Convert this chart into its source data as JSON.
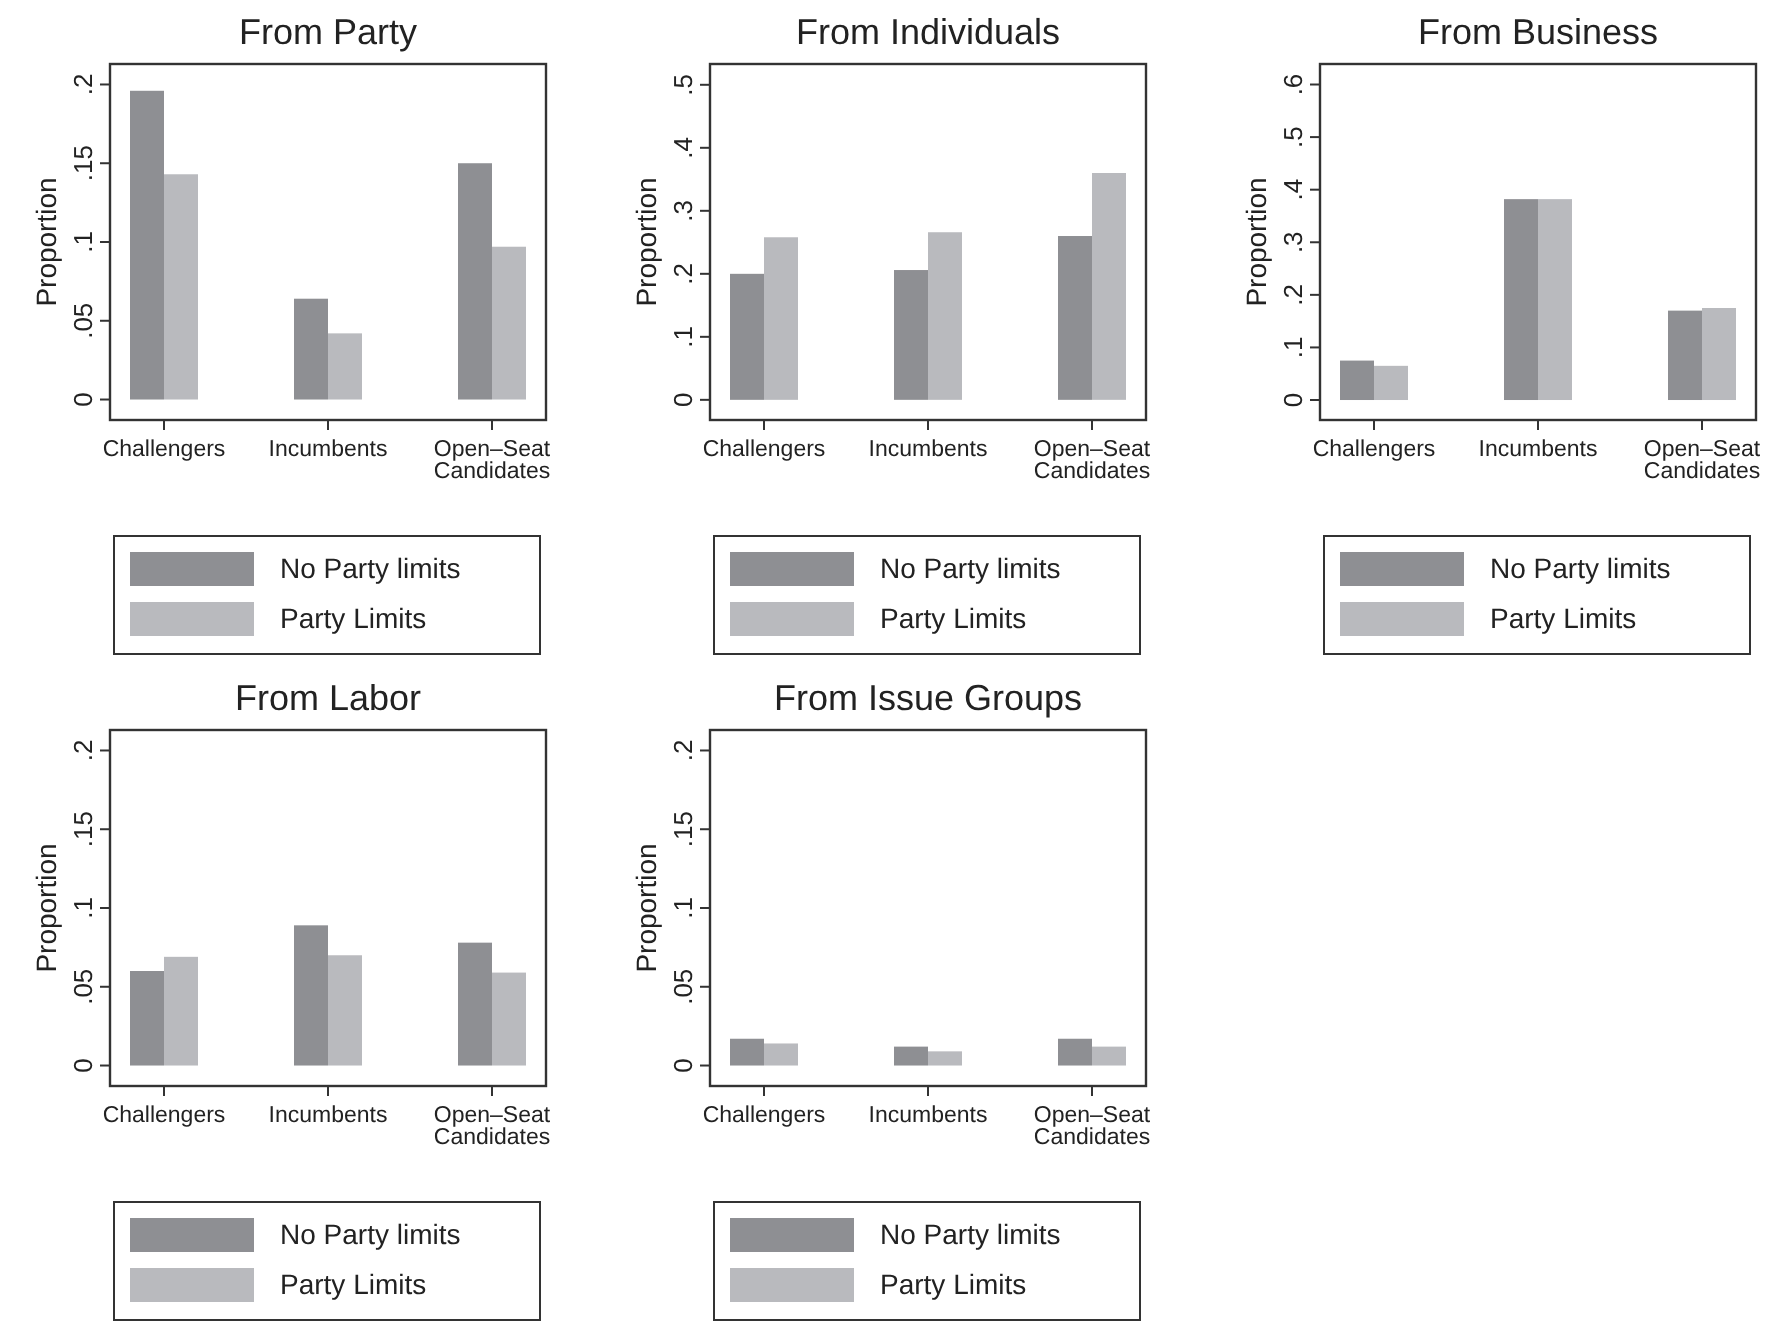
{
  "chart_data": [
    {
      "type": "bar",
      "title": "From Party",
      "ylabel": "Proportion",
      "categories": [
        "Challengers",
        "Incumbents",
        "Open–Seat Candidates"
      ],
      "series": [
        {
          "name": "No Party limits",
          "color": "#8e8f93",
          "values": [
            0.196,
            0.064,
            0.15
          ]
        },
        {
          "name": "Party Limits",
          "color": "#b9babe",
          "values": [
            0.143,
            0.042,
            0.097
          ]
        }
      ],
      "ylim": [
        -0.013,
        0.213
      ],
      "yticks": [
        {
          "value": 0,
          "label": "0"
        },
        {
          "value": 0.05,
          "label": ".05"
        },
        {
          "value": 0.1,
          "label": ".1"
        },
        {
          "value": 0.15,
          "label": ".15"
        },
        {
          "value": 0.2,
          "label": ".2"
        }
      ],
      "legend": "bottom"
    },
    {
      "type": "bar",
      "title": "From Individuals",
      "ylabel": "Proportion",
      "categories": [
        "Challengers",
        "Incumbents",
        "Open–Seat Candidates"
      ],
      "series": [
        {
          "name": "No Party limits",
          "color": "#8e8f93",
          "values": [
            0.2,
            0.206,
            0.26
          ]
        },
        {
          "name": "Party Limits",
          "color": "#b9babe",
          "values": [
            0.258,
            0.266,
            0.36
          ]
        }
      ],
      "ylim": [
        -0.032,
        0.533
      ],
      "yticks": [
        {
          "value": 0,
          "label": "0"
        },
        {
          "value": 0.1,
          "label": ".1"
        },
        {
          "value": 0.2,
          "label": ".2"
        },
        {
          "value": 0.3,
          "label": ".3"
        },
        {
          "value": 0.4,
          "label": ".4"
        },
        {
          "value": 0.5,
          "label": ".5"
        }
      ],
      "legend": "bottom"
    },
    {
      "type": "bar",
      "title": "From Business",
      "ylabel": "Proportion",
      "categories": [
        "Challengers",
        "Incumbents",
        "Open–Seat Candidates"
      ],
      "series": [
        {
          "name": "No Party limits",
          "color": "#8e8f93",
          "values": [
            0.075,
            0.382,
            0.17
          ]
        },
        {
          "name": "Party Limits",
          "color": "#b9babe",
          "values": [
            0.065,
            0.382,
            0.175
          ]
        }
      ],
      "ylim": [
        -0.038,
        0.639
      ],
      "yticks": [
        {
          "value": 0,
          "label": "0"
        },
        {
          "value": 0.1,
          "label": ".1"
        },
        {
          "value": 0.2,
          "label": ".2"
        },
        {
          "value": 0.3,
          "label": ".3"
        },
        {
          "value": 0.4,
          "label": ".4"
        },
        {
          "value": 0.5,
          "label": ".5"
        },
        {
          "value": 0.6,
          "label": ".6"
        }
      ],
      "legend": "bottom"
    },
    {
      "type": "bar",
      "title": "From Labor",
      "ylabel": "Proportion",
      "categories": [
        "Challengers",
        "Incumbents",
        "Open–Seat Candidates"
      ],
      "series": [
        {
          "name": "No Party limits",
          "color": "#8e8f93",
          "values": [
            0.06,
            0.089,
            0.078
          ]
        },
        {
          "name": "Party Limits",
          "color": "#b9babe",
          "values": [
            0.069,
            0.07,
            0.059
          ]
        }
      ],
      "ylim": [
        -0.013,
        0.213
      ],
      "yticks": [
        {
          "value": 0,
          "label": "0"
        },
        {
          "value": 0.05,
          "label": ".05"
        },
        {
          "value": 0.1,
          "label": ".1"
        },
        {
          "value": 0.15,
          "label": ".15"
        },
        {
          "value": 0.2,
          "label": ".2"
        }
      ],
      "legend": "bottom"
    },
    {
      "type": "bar",
      "title": "From Issue Groups",
      "ylabel": "Proportion",
      "categories": [
        "Challengers",
        "Incumbents",
        "Open–Seat Candidates"
      ],
      "series": [
        {
          "name": "No Party limits",
          "color": "#8e8f93",
          "values": [
            0.017,
            0.012,
            0.017
          ]
        },
        {
          "name": "Party Limits",
          "color": "#b9babe",
          "values": [
            0.014,
            0.009,
            0.012
          ]
        }
      ],
      "ylim": [
        -0.013,
        0.213
      ],
      "yticks": [
        {
          "value": 0,
          "label": "0"
        },
        {
          "value": 0.05,
          "label": ".05"
        },
        {
          "value": 0.1,
          "label": ".1"
        },
        {
          "value": 0.15,
          "label": ".15"
        },
        {
          "value": 0.2,
          "label": ".2"
        }
      ],
      "legend": "bottom"
    }
  ]
}
